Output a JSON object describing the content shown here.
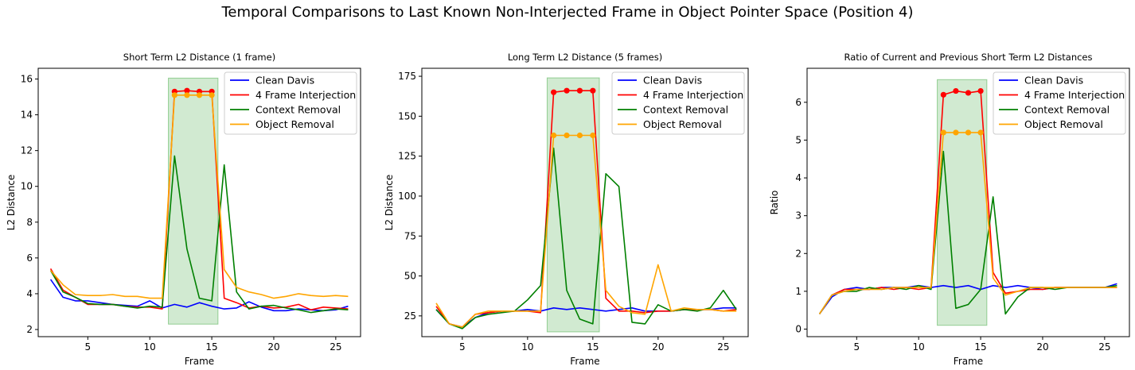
{
  "suptitle": "Temporal Comparisons to Last Known Non-Interjected Frame in Object Pointer Space (Position 4)",
  "colors": {
    "clean": "#0000ff",
    "interjection": "#ff0000",
    "context": "#008000",
    "object": "#ffa500",
    "highlight": "#2ca02c"
  },
  "chart_data": [
    {
      "type": "line",
      "title": "Short Term L2 Distance (1 frame)",
      "xlabel": "Frame",
      "ylabel": "L2 Distance",
      "xlim": [
        1,
        27
      ],
      "ylim": [
        1.6,
        16.6
      ],
      "xticks": [
        5,
        10,
        15,
        20,
        25
      ],
      "yticks": [
        2,
        4,
        6,
        8,
        10,
        12,
        14,
        16
      ],
      "shaded_region": {
        "x": [
          11.5,
          15.5
        ],
        "y": [
          2.3,
          16.05
        ]
      },
      "legend_position": "upper right",
      "x": [
        2,
        3,
        4,
        5,
        6,
        7,
        8,
        9,
        10,
        11,
        12,
        13,
        14,
        15,
        16,
        17,
        18,
        19,
        20,
        21,
        22,
        23,
        24,
        25,
        26
      ],
      "series": [
        {
          "name": "Clean Davis",
          "color_key": "clean",
          "values": [
            4.8,
            3.8,
            3.6,
            3.6,
            3.5,
            3.4,
            3.35,
            3.3,
            3.6,
            3.2,
            3.4,
            3.25,
            3.5,
            3.3,
            3.15,
            3.2,
            3.55,
            3.25,
            3.05,
            3.05,
            3.15,
            3.1,
            3.05,
            3.1,
            3.3
          ]
        },
        {
          "name": "4 Frame Interjection",
          "color_key": "interjection",
          "values": [
            5.4,
            4.2,
            3.8,
            3.4,
            3.4,
            3.4,
            3.3,
            3.25,
            3.25,
            3.15,
            15.3,
            15.35,
            15.3,
            15.3,
            3.75,
            3.5,
            3.2,
            3.3,
            3.2,
            3.25,
            3.4,
            3.1,
            3.25,
            3.2,
            3.15
          ]
        },
        {
          "name": "Context Removal",
          "color_key": "context",
          "values": [
            5.3,
            4.1,
            3.8,
            3.45,
            3.4,
            3.4,
            3.3,
            3.2,
            3.3,
            3.25,
            11.7,
            6.5,
            3.75,
            3.6,
            11.2,
            4.1,
            3.15,
            3.3,
            3.35,
            3.2,
            3.1,
            2.95,
            3.05,
            3.15,
            3.1
          ]
        },
        {
          "name": "Object Removal",
          "color_key": "object",
          "values": [
            5.3,
            4.5,
            3.95,
            3.9,
            3.9,
            3.95,
            3.85,
            3.85,
            3.75,
            3.75,
            15.1,
            15.1,
            15.1,
            15.1,
            5.35,
            4.35,
            4.1,
            3.95,
            3.75,
            3.85,
            4.0,
            3.9,
            3.85,
            3.9,
            3.85
          ]
        }
      ],
      "markers": [
        {
          "color_key": "interjection",
          "x": [
            12,
            13,
            14,
            15
          ],
          "values": [
            15.3,
            15.35,
            15.3,
            15.3
          ]
        },
        {
          "color_key": "object",
          "x": [
            12,
            13,
            14,
            15
          ],
          "values": [
            15.1,
            15.1,
            15.1,
            15.1
          ]
        }
      ]
    },
    {
      "type": "line",
      "title": "Long Term L2 Distance (5 frames)",
      "xlabel": "Frame",
      "ylabel": "L2 Distance",
      "xlim": [
        1.9,
        26.9
      ],
      "ylim": [
        12,
        180
      ],
      "xticks": [
        5,
        10,
        15,
        20,
        25
      ],
      "yticks": [
        25,
        50,
        75,
        100,
        125,
        150,
        175
      ],
      "shaded_region": {
        "x": [
          11.5,
          15.5
        ],
        "y": [
          15,
          174
        ]
      },
      "legend_position": "upper right",
      "x": [
        3,
        4,
        5,
        6,
        7,
        8,
        9,
        10,
        11,
        12,
        13,
        14,
        15,
        16,
        17,
        18,
        19,
        20,
        21,
        22,
        23,
        24,
        25,
        26
      ],
      "series": [
        {
          "name": "Clean Davis",
          "color_key": "clean",
          "values": [
            29,
            20,
            18,
            24,
            27,
            28,
            28,
            29,
            28,
            30,
            29,
            30,
            29,
            28,
            29,
            30,
            28,
            28,
            28,
            29,
            29,
            29,
            30,
            30
          ]
        },
        {
          "name": "4 Frame Interjection",
          "color_key": "interjection",
          "values": [
            31,
            20,
            18,
            26,
            27,
            28,
            28,
            28,
            27,
            165,
            166,
            166,
            166,
            36,
            28,
            28,
            27,
            28,
            28,
            29,
            29,
            29,
            28,
            29
          ]
        },
        {
          "name": "Context Removal",
          "color_key": "context",
          "values": [
            29,
            20,
            17,
            24,
            26,
            27,
            28,
            35,
            44,
            130,
            41,
            23,
            20,
            114,
            106,
            21,
            20,
            32,
            28,
            29,
            28,
            30,
            41,
            29
          ]
        },
        {
          "name": "Object Removal",
          "color_key": "object",
          "values": [
            33,
            20,
            18,
            26,
            28,
            28,
            28,
            28,
            28,
            138,
            138,
            138,
            138,
            41,
            31,
            27,
            26,
            57,
            28,
            30,
            29,
            29,
            28,
            28
          ]
        }
      ],
      "markers": [
        {
          "color_key": "interjection",
          "x": [
            12,
            13,
            14,
            15
          ],
          "values": [
            165,
            166,
            166,
            166
          ]
        },
        {
          "color_key": "object",
          "x": [
            12,
            13,
            14,
            15
          ],
          "values": [
            138,
            138,
            138,
            138
          ]
        }
      ]
    },
    {
      "type": "line",
      "title": "Ratio of Current and Previous Short Term L2 Distances",
      "xlabel": "Frame",
      "ylabel": "Ratio",
      "xlim": [
        1,
        27
      ],
      "ylim": [
        -0.2,
        6.9
      ],
      "xticks": [
        5,
        10,
        15,
        20,
        25
      ],
      "yticks": [
        0,
        1,
        2,
        3,
        4,
        5,
        6
      ],
      "shaded_region": {
        "x": [
          11.5,
          15.5
        ],
        "y": [
          0.1,
          6.6
        ]
      },
      "legend_position": "upper right",
      "x": [
        2,
        3,
        4,
        5,
        6,
        7,
        8,
        9,
        10,
        11,
        12,
        13,
        14,
        15,
        16,
        17,
        18,
        19,
        20,
        21,
        22,
        23,
        24,
        25,
        26
      ],
      "series": [
        {
          "name": "Clean Davis",
          "color_key": "clean",
          "values": [
            0.4,
            0.85,
            1.05,
            1.1,
            1.05,
            1.1,
            1.1,
            1.1,
            1.15,
            1.1,
            1.15,
            1.1,
            1.15,
            1.05,
            1.15,
            1.1,
            1.15,
            1.1,
            1.05,
            1.1,
            1.1,
            1.1,
            1.1,
            1.1,
            1.2
          ]
        },
        {
          "name": "4 Frame Interjection",
          "color_key": "interjection",
          "values": [
            0.4,
            0.9,
            1.05,
            1.05,
            1.05,
            1.1,
            1.05,
            1.1,
            1.05,
            1.1,
            6.2,
            6.3,
            6.25,
            6.3,
            1.5,
            0.95,
            1.0,
            1.05,
            1.05,
            1.1,
            1.1,
            1.1,
            1.1,
            1.1,
            1.1
          ]
        },
        {
          "name": "Context Removal",
          "color_key": "context",
          "values": [
            0.4,
            0.9,
            1.0,
            1.0,
            1.1,
            1.05,
            1.1,
            1.05,
            1.15,
            1.05,
            4.7,
            0.55,
            0.65,
            1.05,
            3.5,
            0.4,
            0.85,
            1.1,
            1.1,
            1.05,
            1.1,
            1.1,
            1.1,
            1.1,
            1.15
          ]
        },
        {
          "name": "Object Removal",
          "color_key": "object",
          "values": [
            0.4,
            0.9,
            1.0,
            1.05,
            1.05,
            1.05,
            1.1,
            1.1,
            1.1,
            1.1,
            5.2,
            5.2,
            5.2,
            5.2,
            1.35,
            0.9,
            1.0,
            1.1,
            1.1,
            1.1,
            1.1,
            1.1,
            1.1,
            1.1,
            1.1
          ]
        }
      ],
      "markers": [
        {
          "color_key": "interjection",
          "x": [
            12,
            13,
            14,
            15
          ],
          "values": [
            6.2,
            6.3,
            6.25,
            6.3
          ]
        },
        {
          "color_key": "object",
          "x": [
            12,
            13,
            14,
            15
          ],
          "values": [
            5.2,
            5.2,
            5.2,
            5.2
          ]
        }
      ]
    }
  ]
}
